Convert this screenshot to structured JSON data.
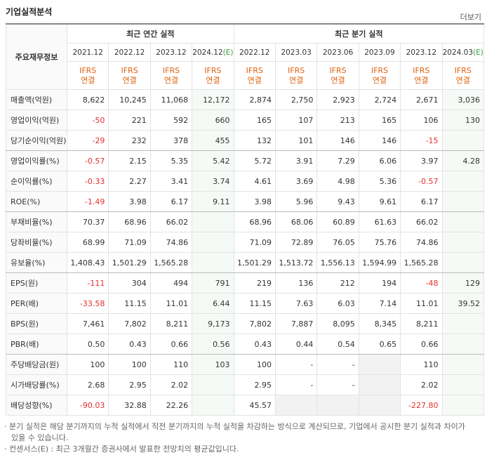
{
  "header": {
    "title": "기업실적분석",
    "more_link": "더보기"
  },
  "table": {
    "corner_label": "주요재무정보",
    "groups": [
      "최근 연간 실적",
      "최근 분기 실적"
    ],
    "periods": [
      "2021.12",
      "2022.12",
      "2023.12",
      "2024.12",
      "2022.12",
      "2023.03",
      "2023.06",
      "2023.09",
      "2023.12",
      "2024.03"
    ],
    "estimate_mark": "(E)",
    "estimate_columns": [
      3,
      9
    ],
    "accounting": [
      "IFRS",
      "연결"
    ],
    "rows": [
      {
        "label": "매출액(억원)",
        "values": [
          "8,622",
          "10,245",
          "11,068",
          "12,172",
          "2,874",
          "2,750",
          "2,923",
          "2,724",
          "2,671",
          "3,036"
        ]
      },
      {
        "label": "영업이익(억원)",
        "values": [
          "-50",
          "221",
          "592",
          "660",
          "165",
          "107",
          "213",
          "165",
          "106",
          "130"
        ]
      },
      {
        "label": "당기순이익(억원)",
        "values": [
          "-29",
          "232",
          "378",
          "455",
          "132",
          "101",
          "146",
          "146",
          "-15",
          null
        ]
      },
      {
        "label": "영업이익률(%)",
        "values": [
          "-0.57",
          "2.15",
          "5.35",
          "5.42",
          "5.72",
          "3.91",
          "7.29",
          "6.06",
          "3.97",
          "4.28"
        ]
      },
      {
        "label": "순이익률(%)",
        "values": [
          "-0.33",
          "2.27",
          "3.41",
          "3.74",
          "4.61",
          "3.69",
          "4.98",
          "5.36",
          "-0.57",
          null
        ]
      },
      {
        "label": "ROE(%)",
        "values": [
          "-1.49",
          "3.98",
          "6.17",
          "9.11",
          "3.98",
          "5.96",
          "9.43",
          "9.61",
          "6.17",
          null
        ]
      },
      {
        "label": "부채비율(%)",
        "values": [
          "70.37",
          "68.96",
          "66.02",
          null,
          "68.96",
          "68.06",
          "60.89",
          "61.63",
          "66.02",
          null
        ]
      },
      {
        "label": "당좌비율(%)",
        "values": [
          "68.99",
          "71.09",
          "74.86",
          null,
          "71.09",
          "72.89",
          "76.05",
          "75.76",
          "74.86",
          null
        ]
      },
      {
        "label": "유보율(%)",
        "values": [
          "1,408.43",
          "1,501.29",
          "1,565.28",
          null,
          "1,501.29",
          "1,513.72",
          "1,556.13",
          "1,594.99",
          "1,565.28",
          null
        ]
      },
      {
        "label": "EPS(원)",
        "values": [
          "-111",
          "304",
          "494",
          "791",
          "219",
          "136",
          "212",
          "194",
          "-48",
          "129"
        ]
      },
      {
        "label": "PER(배)",
        "values": [
          "-33.58",
          "11.15",
          "11.01",
          "6.44",
          "11.15",
          "7.63",
          "6.03",
          "7.14",
          "11.01",
          "39.52"
        ]
      },
      {
        "label": "BPS(원)",
        "values": [
          "7,461",
          "7,802",
          "8,211",
          "9,173",
          "7,802",
          "7,887",
          "8,095",
          "8,345",
          "8,211",
          null
        ]
      },
      {
        "label": "PBR(배)",
        "values": [
          "0.50",
          "0.43",
          "0.66",
          "0.56",
          "0.43",
          "0.44",
          "0.54",
          "0.65",
          "0.66",
          null
        ]
      },
      {
        "label": "주당배당금(원)",
        "values": [
          "100",
          "100",
          "110",
          "103",
          "100",
          "-",
          "-",
          null,
          "110",
          null
        ]
      },
      {
        "label": "시가배당률(%)",
        "values": [
          "2.68",
          "2.95",
          "2.02",
          null,
          "2.95",
          "-",
          "-",
          null,
          "2.02",
          null
        ]
      },
      {
        "label": "배당성향(%)",
        "values": [
          "-90.03",
          "32.88",
          "22.26",
          null,
          "45.57",
          null,
          null,
          null,
          "-227.80",
          null
        ]
      }
    ],
    "group_ends": [
      2,
      5,
      8,
      12
    ]
  },
  "notes": [
    "· 분기 실적은 해당 분기까지의 누적 실적에서 직전 분기까지의 누적 실적을 차감하는 방식으로 계산되므로, 기업에서 공시한 분기 실적과 차이가 있을 수 있습니다.",
    "· 컨센서스(E) : 최근 3개월간 증권사에서 발표한 전망치의 평균값입니다."
  ]
}
